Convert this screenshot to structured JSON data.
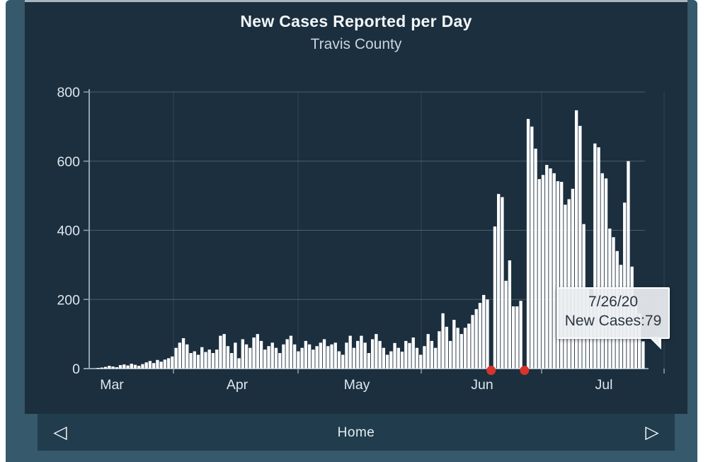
{
  "header": {
    "title": "New Cases Reported per Day",
    "subtitle": "Travis County"
  },
  "navbar": {
    "home_label": "Home",
    "prev_icon": "◁",
    "next_icon": "▷"
  },
  "tooltip": {
    "date": "7/26/20",
    "label": "New Cases",
    "value": 79,
    "line2": "New Cases:79"
  },
  "colors": {
    "panel_background": "#1b2f3f",
    "surround_background": "#36596b",
    "navbar_background": "#213c4d",
    "bar": "#ffffff",
    "event_marker_red": "#d8342c",
    "axis": "#8fa2ae",
    "tick_text": "#dde7ee",
    "gridline": "rgba(218,230,238,0.25)",
    "month_gridline": "rgba(218,230,238,0.13)",
    "tooltip_background": "#eceff1"
  },
  "chart_data": {
    "type": "bar",
    "title": "New Cases Reported per Day",
    "subtitle": "Travis County",
    "xlabel": "",
    "ylabel": "",
    "start_date": "3/1/20",
    "end_date": "7/26/20",
    "x_tick_labels": [
      "Mar",
      "Apr",
      "May",
      "Jun",
      "Jul"
    ],
    "y_tick_labels": [
      0,
      200,
      400,
      600,
      800
    ],
    "ylim": [
      0,
      800
    ],
    "grid": true,
    "legend": false,
    "values": [
      2,
      3,
      5,
      8,
      6,
      4,
      10,
      12,
      9,
      14,
      11,
      8,
      13,
      18,
      22,
      16,
      25,
      20,
      26,
      30,
      35,
      60,
      75,
      88,
      70,
      45,
      50,
      40,
      62,
      48,
      55,
      45,
      55,
      95,
      100,
      65,
      45,
      75,
      30,
      85,
      70,
      60,
      90,
      100,
      80,
      55,
      65,
      75,
      60,
      45,
      70,
      85,
      95,
      70,
      50,
      60,
      80,
      70,
      55,
      65,
      75,
      85,
      65,
      70,
      75,
      50,
      40,
      75,
      95,
      60,
      80,
      95,
      75,
      45,
      85,
      100,
      80,
      60,
      40,
      50,
      74,
      60,
      49,
      80,
      74,
      90,
      60,
      40,
      65,
      100,
      80,
      60,
      108,
      160,
      121,
      80,
      141,
      118,
      100,
      118,
      130,
      155,
      172,
      190,
      213,
      200,
      0,
      411,
      505,
      496,
      254,
      313,
      180,
      180,
      196,
      0,
      722,
      700,
      636,
      548,
      560,
      589,
      579,
      565,
      542,
      540,
      474,
      490,
      520,
      747,
      702,
      418,
      230,
      205,
      651,
      640,
      565,
      550,
      405,
      380,
      340,
      300,
      480,
      600,
      295,
      190,
      160,
      79
    ],
    "event_marker_indices": [
      106,
      115
    ],
    "highlighted_point": {
      "date": "7/26/20",
      "label": "New Cases",
      "value": 79
    }
  }
}
